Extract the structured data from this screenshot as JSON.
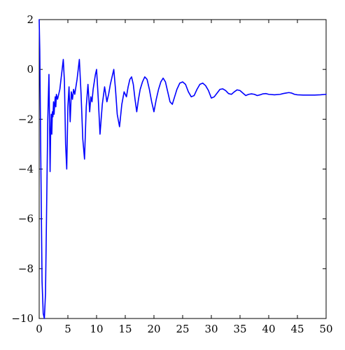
{
  "chart_data": {
    "type": "line",
    "title": "",
    "xlabel": "",
    "ylabel": "",
    "xlim": [
      0,
      50
    ],
    "ylim": [
      -10,
      2
    ],
    "xticks": [
      0,
      5,
      10,
      15,
      20,
      25,
      30,
      35,
      40,
      45,
      50
    ],
    "yticks": [
      -10,
      -8,
      -6,
      -4,
      -2,
      0,
      2
    ],
    "x_tick_labels": [
      "0",
      "5",
      "10",
      "15",
      "20",
      "25",
      "30",
      "35",
      "40",
      "45",
      "50"
    ],
    "y_tick_labels": [
      "−10",
      "−8",
      "−6",
      "−4",
      "−2",
      "0",
      "2"
    ],
    "grid": false,
    "legend": "none",
    "series": [
      {
        "color": "#0000ff",
        "x": [
          0,
          0.1,
          0.3,
          0.5,
          0.7,
          0.9,
          1.1,
          1.3,
          1.5,
          1.7,
          1.8,
          1.9,
          2.0,
          2.1,
          2.2,
          2.3,
          2.4,
          2.5,
          2.6,
          2.7,
          2.8,
          2.9,
          3.0,
          3.2,
          3.4,
          3.6,
          3.8,
          4.0,
          4.2,
          4.4,
          4.6,
          4.8,
          5.0,
          5.2,
          5.4,
          5.6,
          5.8,
          6.0,
          6.2,
          6.4,
          6.6,
          6.8,
          7.0,
          7.3,
          7.6,
          7.9,
          8.2,
          8.5,
          8.8,
          9.0,
          9.2,
          9.4,
          9.6,
          9.8,
          10.0,
          10.3,
          10.6,
          11.0,
          11.4,
          11.8,
          12.1,
          12.4,
          12.7,
          13.0,
          13.3,
          13.6,
          14.0,
          14.4,
          14.8,
          15.2,
          15.5,
          15.8,
          16.1,
          16.4,
          16.7,
          17.0,
          17.3,
          17.6,
          18.0,
          18.4,
          18.8,
          19.2,
          19.6,
          20.0,
          20.4,
          20.8,
          21.2,
          21.6,
          22.0,
          22.4,
          22.8,
          23.2,
          23.6,
          24.0,
          24.5,
          25.0,
          25.5,
          26.0,
          26.5,
          27.0,
          27.5,
          28.0,
          28.5,
          29.0,
          29.5,
          30.0,
          30.5,
          31.0,
          31.5,
          32.0,
          32.5,
          33.0,
          33.5,
          34.0,
          34.5,
          35.0,
          35.5,
          36.0,
          36.5,
          37.0,
          37.5,
          38.0,
          38.5,
          39.0,
          39.5,
          40.0,
          41.0,
          42.0,
          42.5,
          43.0,
          43.5,
          44.0,
          44.5,
          45.0,
          46.0,
          47.0,
          48.0,
          49.0,
          50.0
        ],
        "y": [
          2.0,
          0.8,
          -4.0,
          -8.5,
          -9.8,
          -10.0,
          -9.0,
          -5.5,
          -2.0,
          -0.2,
          -2.0,
          -4.1,
          -2.5,
          -1.8,
          -2.6,
          -1.7,
          -1.9,
          -1.3,
          -1.8,
          -1.4,
          -1.1,
          -1.5,
          -1.0,
          -1.2,
          -1.0,
          -0.8,
          -0.4,
          0.0,
          0.4,
          -0.5,
          -3.0,
          -4.0,
          -1.5,
          -0.7,
          -2.1,
          -0.9,
          -1.2,
          -0.8,
          -1.0,
          -0.7,
          -0.4,
          0.0,
          0.4,
          -1.0,
          -2.8,
          -3.6,
          -1.5,
          -0.6,
          -1.7,
          -1.1,
          -1.3,
          -0.8,
          -0.5,
          -0.2,
          0.0,
          -1.2,
          -2.6,
          -1.4,
          -0.7,
          -1.3,
          -1.0,
          -0.6,
          -0.3,
          0.0,
          -0.8,
          -1.8,
          -2.3,
          -1.4,
          -0.9,
          -1.1,
          -0.7,
          -0.4,
          -0.3,
          -0.6,
          -1.2,
          -1.7,
          -1.2,
          -0.8,
          -0.5,
          -0.3,
          -0.4,
          -0.8,
          -1.3,
          -1.7,
          -1.2,
          -0.8,
          -0.5,
          -0.35,
          -0.5,
          -0.9,
          -1.3,
          -1.4,
          -1.1,
          -0.8,
          -0.55,
          -0.5,
          -0.6,
          -0.9,
          -1.1,
          -1.05,
          -0.8,
          -0.6,
          -0.55,
          -0.65,
          -0.85,
          -1.15,
          -1.1,
          -0.95,
          -0.8,
          -0.78,
          -0.85,
          -0.97,
          -1.0,
          -0.9,
          -0.82,
          -0.85,
          -0.95,
          -1.05,
          -1.0,
          -0.98,
          -1.0,
          -1.05,
          -1.02,
          -0.98,
          -0.97,
          -1.0,
          -1.02,
          -1.0,
          -0.97,
          -0.95,
          -0.93,
          -0.95,
          -1.0,
          -1.02,
          -1.03,
          -1.03,
          -1.03,
          -1.02,
          -1.0
        ]
      }
    ]
  }
}
